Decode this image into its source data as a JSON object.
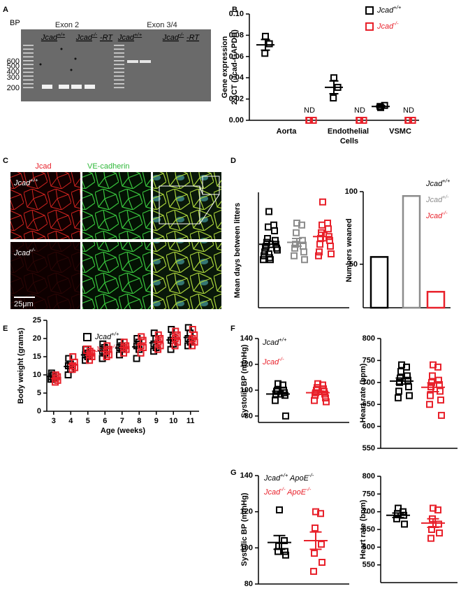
{
  "panel_labels": [
    "A",
    "B",
    "C",
    "D",
    "E",
    "F",
    "G"
  ],
  "gel": {
    "bp": "BP",
    "markers": [
      "600",
      "500",
      "400",
      "300",
      "200"
    ],
    "exons": [
      "Exon 2",
      "Exon 3/4"
    ],
    "lanes": [
      "Jcad+/+",
      "Jcad-/-",
      "-RT",
      "Jcad+/+",
      "Jcad-/-",
      "-RT"
    ]
  },
  "micrographs": {
    "channels": [
      "Jcad",
      "VE-cadherin"
    ],
    "rows": [
      "Jcad+/+",
      "Jcad-/-"
    ],
    "scale_bar": "25μm"
  },
  "chart_data": [
    {
      "type": "dot",
      "y_label": [
        "Gene expression",
        "2ΔCT (Jcad-GAPDH)"
      ],
      "categories": [
        "Aorta",
        "Endothelial Cells",
        "VSMC"
      ],
      "ylim": [
        0,
        0.1
      ],
      "yticks": [
        {
          "value": 0,
          "label": "0.00"
        },
        {
          "value": 0.02,
          "label": "0.02"
        },
        {
          "value": 0.04,
          "label": "0.04"
        },
        {
          "value": 0.06,
          "label": "0.06"
        },
        {
          "value": 0.08,
          "label": "0.08"
        },
        {
          "value": 0.1,
          "label": "0.10"
        }
      ],
      "series": [
        {
          "name": "Jcad+/+",
          "color": "#000000",
          "values": [
            [
              0.079,
              0.072,
              0.063
            ],
            [
              0.04,
              0.031,
              0.021
            ],
            [
              0.012,
              0.014,
              0.013
            ]
          ],
          "means": [
            0.071,
            0.031,
            0.013
          ],
          "sems": [
            0.005,
            0.006,
            0.001
          ]
        },
        {
          "name": "Jcad-/-",
          "color": "#e8202a",
          "values": [
            [
              0,
              0,
              0
            ],
            [
              0,
              0,
              0
            ],
            [
              0,
              0,
              0
            ]
          ],
          "annotations": [
            "ND",
            "ND",
            "ND"
          ]
        }
      ]
    },
    {
      "type": "dot",
      "y_label": "Mean days between litters",
      "ylim": [
        0,
        60
      ],
      "series": [
        {
          "color": "#000000",
          "values": [
            50,
            43,
            42,
            40,
            36,
            35,
            34,
            33,
            32,
            31,
            31,
            30,
            29,
            28,
            27,
            26,
            25,
            25
          ],
          "mean": 33,
          "sem": 1.6
        },
        {
          "color": "#8c8c8c",
          "values": [
            44,
            43,
            39,
            35,
            33,
            32,
            31,
            29,
            27,
            25
          ],
          "mean": 34,
          "sem": 2
        },
        {
          "color": "#e8202a",
          "values": [
            55,
            44,
            43,
            41,
            39,
            37,
            36,
            35,
            33,
            32,
            29,
            28,
            27
          ],
          "mean": 37,
          "sem": 2.2
        }
      ]
    },
    {
      "type": "bar",
      "y_label": "Numbers weaned",
      "ylim": [
        20,
        100
      ],
      "yticks": [
        50,
        100
      ],
      "series": [
        {
          "name": "Jcad+/+",
          "color": "#000000",
          "values": [
            55
          ]
        },
        {
          "name": "Jcad+/-",
          "color": "#8c8c8c",
          "values": [
            97
          ]
        },
        {
          "name": "Jcad-/-",
          "color": "#e8202a",
          "values": [
            31
          ]
        }
      ]
    },
    {
      "type": "scatter",
      "y_label": "Body weight (grams)",
      "x_label": "Age (weeks)",
      "x": [
        3,
        4,
        5,
        6,
        7,
        8,
        9,
        10,
        11
      ],
      "xlim": [
        2.6,
        11.5
      ],
      "xticks": [
        3,
        4,
        5,
        6,
        7,
        8,
        9,
        10,
        11
      ],
      "ylim": [
        0,
        25
      ],
      "yticks": [
        0,
        5,
        10,
        15,
        20,
        25
      ],
      "series": [
        {
          "name": "Jcad+/+",
          "color": "#000000",
          "values": [
            [
              10.5,
              10,
              9.5,
              9,
              8.8
            ],
            [
              14.5,
              13,
              12.5,
              11.5,
              10
            ],
            [
              17,
              16,
              15.5,
              15,
              14
            ],
            [
              18.5,
              17.5,
              16.5,
              16,
              14.5
            ],
            [
              19,
              18,
              17.5,
              17,
              15.5
            ],
            [
              20,
              19,
              18,
              17,
              14.5
            ],
            [
              21.5,
              20,
              18.5,
              17.5,
              16.5
            ],
            [
              22.5,
              20.5,
              19.5,
              18.5,
              17
            ],
            [
              23,
              21.5,
              20,
              19,
              18
            ]
          ],
          "means": [
            9.6,
            12.3,
            15.5,
            16.6,
            17.4,
            17.7,
            18.8,
            19.6,
            20.3
          ]
        },
        {
          "name": "Jcad-/-",
          "color": "#e8202a",
          "values": [
            [
              10,
              9.5,
              9,
              8.5,
              8
            ],
            [
              15,
              13.5,
              12.5,
              12,
              11.5
            ],
            [
              16.5,
              16,
              15.5,
              15,
              14
            ],
            [
              18,
              17,
              16.5,
              15.5,
              15
            ],
            [
              19,
              18,
              17.5,
              17,
              16
            ],
            [
              20.5,
              19.5,
              18,
              17.5,
              16
            ],
            [
              21,
              20,
              19,
              18,
              17
            ],
            [
              22,
              21,
              20,
              19,
              18
            ],
            [
              22.5,
              21,
              20,
              19,
              18
            ]
          ],
          "means": [
            9.0,
            12.9,
            15.4,
            16.4,
            17.5,
            18.3,
            19.0,
            20.0,
            20.1
          ]
        }
      ]
    },
    {
      "type": "dot",
      "y_label": "Systolic BP (mmHg)",
      "ylim": [
        75,
        140
      ],
      "yticks": [
        80,
        100,
        120,
        140
      ],
      "series": [
        {
          "name": "Jcad+/+",
          "color": "#000000",
          "values": [
            105,
            104,
            100,
            100,
            99,
            98,
            97,
            96,
            92,
            80
          ],
          "mean": 97,
          "sem": 2.2
        },
        {
          "name": "Jcad-/-",
          "color": "#e8202a",
          "values": [
            105,
            104,
            102,
            101,
            100,
            99,
            98,
            97,
            96,
            94,
            92,
            91
          ],
          "mean": 98,
          "sem": 1.3
        }
      ]
    },
    {
      "type": "dot",
      "y_label": "Heart rate (bpm)",
      "ylim": [
        550,
        800
      ],
      "yticks": [
        550,
        600,
        650,
        700,
        750,
        800
      ],
      "series": [
        {
          "color": "#000000",
          "values": [
            740,
            735,
            725,
            715,
            710,
            705,
            700,
            690,
            680,
            670,
            665
          ],
          "mean": 703,
          "sem": 7
        },
        {
          "color": "#e8202a",
          "values": [
            740,
            735,
            715,
            705,
            700,
            695,
            690,
            680,
            670,
            660,
            650,
            625
          ],
          "mean": 689,
          "sem": 10
        }
      ]
    },
    {
      "type": "dot",
      "y_label": "Systolic BP (mmHg)",
      "ylim": [
        80,
        140
      ],
      "yticks": [
        80,
        100,
        120,
        140
      ],
      "series": [
        {
          "name": "Jcad+/+ ApoE-/-",
          "color": "#000000",
          "values": [
            121,
            104,
            101,
            98,
            98,
            96
          ],
          "mean": 103,
          "sem": 3.8
        },
        {
          "name": "Jcad-/- ApoE-/-",
          "color": "#e8202a",
          "values": [
            120,
            119,
            111,
            102,
            97,
            92,
            87
          ],
          "mean": 104,
          "sem": 4.8
        }
      ]
    },
    {
      "type": "dot",
      "y_label": "Heart rate (bpm)",
      "ylim": [
        500,
        800
      ],
      "yticks": [
        550,
        600,
        650,
        700,
        750,
        800
      ],
      "series": [
        {
          "color": "#000000",
          "values": [
            710,
            700,
            695,
            690,
            680,
            665
          ],
          "mean": 690,
          "sem": 6.5
        },
        {
          "color": "#e8202a",
          "values": [
            710,
            705,
            680,
            665,
            650,
            640,
            625
          ],
          "mean": 668,
          "sem": 12
        }
      ]
    }
  ]
}
